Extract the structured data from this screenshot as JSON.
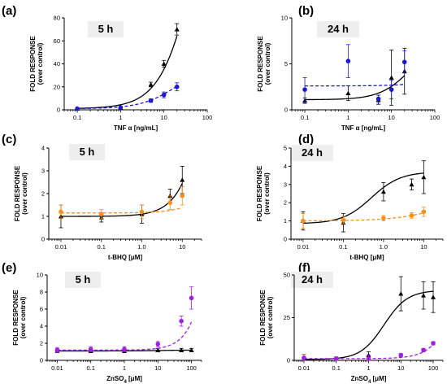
{
  "colors": {
    "black": "#000000",
    "blue": "#1a1acc",
    "orange": "#f5901e",
    "magenta": "#a020e0",
    "axis": "#000000",
    "label_box": "#eeeeee"
  },
  "y_label_line1": "FOLD RESPONSE",
  "y_label_line2": "(over control)",
  "chart_data": [
    {
      "panel": "(a)",
      "time": "5 h",
      "type": "scatter",
      "x_scale": "log",
      "xlim": [
        0.05,
        100
      ],
      "ylim": [
        0,
        80
      ],
      "x_ticks": [
        0.1,
        1,
        10,
        100
      ],
      "x_tick_labels": [
        "0.1",
        "1",
        "10",
        "100"
      ],
      "y_ticks": [
        0,
        20,
        40,
        60,
        80
      ],
      "y_tick_labels": [
        "0",
        "20",
        "40",
        "60",
        "80"
      ],
      "xlabel": "TNF α [ng/mL]",
      "series": [
        {
          "marker": "triangle",
          "color": "#000000",
          "line": "solid",
          "x": [
            0.1,
            1,
            5,
            10,
            20
          ],
          "y": [
            1,
            2,
            22,
            40,
            70
          ],
          "err": [
            0.5,
            0.8,
            2,
            3,
            5
          ],
          "curve": {
            "bottom": 1,
            "top": 300,
            "ec50": 70,
            "hill": 1.05
          }
        },
        {
          "marker": "circle",
          "color": "#1a1acc",
          "line": "dashed",
          "x": [
            0.1,
            1,
            5,
            10,
            20
          ],
          "y": [
            1,
            2,
            8,
            13,
            20
          ],
          "err": [
            0.5,
            0.5,
            1.5,
            2.5,
            3.5
          ],
          "curve": {
            "bottom": 1,
            "top": 40,
            "ec50": 20,
            "hill": 1.05
          }
        }
      ]
    },
    {
      "panel": "(b)",
      "time": "24 h",
      "type": "scatter",
      "x_scale": "log",
      "xlim": [
        0.05,
        100
      ],
      "ylim": [
        0,
        10
      ],
      "x_ticks": [
        0.1,
        1,
        10,
        100
      ],
      "x_tick_labels": [
        "0.1",
        "1",
        "10",
        "100"
      ],
      "y_ticks": [
        0,
        5,
        10
      ],
      "y_tick_labels": [
        "0",
        "5",
        "10"
      ],
      "xlabel": "TNF α [ng/mL]",
      "series": [
        {
          "marker": "triangle",
          "color": "#000000",
          "line": "solid",
          "x": [
            0.1,
            1,
            5,
            10,
            20
          ],
          "y": [
            1.0,
            1.8,
            1.1,
            3.5,
            4.2
          ],
          "err": [
            0.3,
            0.8,
            0.5,
            3.0,
            2.5
          ],
          "curve": {
            "bottom": 1.1,
            "top": 8,
            "ec50": 30,
            "hill": 1.2
          }
        },
        {
          "marker": "circle",
          "color": "#1a1acc",
          "line": "dashed",
          "x": [
            0.1,
            1,
            5,
            10,
            20
          ],
          "y": [
            2.2,
            5.3,
            1.2,
            2.2,
            5.2
          ],
          "err": [
            1.3,
            1.8,
            0.4,
            1.0,
            1.2
          ],
          "curve": {
            "bottom": 2.6,
            "top": 20,
            "ec50": 2000,
            "hill": 1
          }
        }
      ]
    },
    {
      "panel": "(c)",
      "time": "5 h",
      "type": "scatter",
      "x_scale": "log",
      "xlim": [
        0.005,
        30
      ],
      "ylim": [
        0,
        4
      ],
      "x_ticks": [
        0.01,
        0.1,
        1.0,
        10
      ],
      "x_tick_labels": [
        "0.01",
        "0.1",
        "1.0",
        "10"
      ],
      "y_ticks": [
        0,
        1,
        2,
        3,
        4
      ],
      "y_tick_labels": [
        "0",
        "1",
        "2",
        "3",
        "4"
      ],
      "xlabel": "t-BHQ [μM]",
      "series": [
        {
          "marker": "triangle",
          "color": "#000000",
          "line": "solid",
          "x": [
            0.01,
            0.1,
            1,
            5,
            10
          ],
          "y": [
            1.0,
            0.95,
            1.1,
            1.9,
            2.6
          ],
          "err": [
            0.5,
            0.2,
            0.4,
            0.3,
            0.6
          ],
          "curve": {
            "bottom": 1.0,
            "top": 20,
            "ec50": 80,
            "hill": 1.2
          }
        },
        {
          "marker": "circle",
          "color": "#f5901e",
          "line": "dashed",
          "x": [
            0.01,
            0.1,
            1,
            5,
            10
          ],
          "y": [
            1.2,
            1.1,
            1.2,
            1.6,
            1.9
          ],
          "err": [
            0.3,
            0.2,
            0.3,
            0.3,
            0.4
          ],
          "curve": {
            "bottom": 1.15,
            "top": 6,
            "ec50": 150,
            "hill": 1.1
          }
        }
      ]
    },
    {
      "panel": "(d)",
      "time": "24 h",
      "type": "scatter",
      "x_scale": "log",
      "xlim": [
        0.005,
        30
      ],
      "ylim": [
        0,
        5
      ],
      "x_ticks": [
        0.01,
        0.1,
        1.0,
        10
      ],
      "x_tick_labels": [
        "0.01",
        "0.1",
        "1.0",
        "10"
      ],
      "y_ticks": [
        0,
        1,
        2,
        3,
        4,
        5
      ],
      "y_tick_labels": [
        "0",
        "1",
        "2",
        "3",
        "4",
        "5"
      ],
      "xlabel": "t-BHQ [μM]",
      "series": [
        {
          "marker": "triangle",
          "color": "#000000",
          "line": "solid",
          "x": [
            0.01,
            0.1,
            1,
            5,
            10
          ],
          "y": [
            1.0,
            0.9,
            2.6,
            3.0,
            3.4
          ],
          "err": [
            0.5,
            0.5,
            0.5,
            0.3,
            0.9
          ],
          "curve": {
            "bottom": 0.85,
            "top": 3.7,
            "ec50": 0.5,
            "hill": 1.2
          }
        },
        {
          "marker": "circle",
          "color": "#f5901e",
          "line": "dashed",
          "x": [
            0.01,
            0.1,
            1,
            5,
            10
          ],
          "y": [
            1.0,
            1.05,
            1.15,
            1.3,
            1.5
          ],
          "err": [
            0.4,
            0.2,
            0.15,
            0.15,
            0.25
          ],
          "curve": {
            "bottom": 1.0,
            "top": 3,
            "ec50": 60,
            "hill": 0.7
          }
        }
      ]
    },
    {
      "panel": "(e)",
      "time": "5 h",
      "type": "scatter",
      "x_scale": "log",
      "xlim": [
        0.005,
        200
      ],
      "ylim": [
        0,
        10
      ],
      "x_ticks": [
        0.01,
        0.1,
        1,
        10,
        100
      ],
      "x_tick_labels": [
        "0.01",
        "0.1",
        "1",
        "10",
        "100"
      ],
      "y_ticks": [
        0,
        2,
        4,
        6,
        8,
        10
      ],
      "y_tick_labels": [
        "0",
        "2",
        "4",
        "6",
        "8",
        "10"
      ],
      "xlabel": "ZnSO4 [μM]",
      "xlabel_parts": [
        "ZnSO",
        "4",
        " [μM]"
      ],
      "series": [
        {
          "marker": "triangle",
          "color": "#000000",
          "line": "solid",
          "x": [
            0.01,
            0.1,
            1,
            10,
            50,
            100
          ],
          "y": [
            1.1,
            1.1,
            1.1,
            1.2,
            1.2,
            1.2
          ],
          "err": [
            0.2,
            0.2,
            0.2,
            0.2,
            0.2,
            0.2
          ],
          "curve": {
            "bottom": 1.1,
            "top": 1.2,
            "ec50": 10,
            "hill": 1
          }
        },
        {
          "marker": "circle",
          "color": "#a020e0",
          "line": "dashed",
          "x": [
            0.01,
            0.1,
            1,
            10,
            50,
            100
          ],
          "y": [
            1.2,
            1.3,
            1.3,
            1.9,
            4.6,
            7.3
          ],
          "err": [
            0.3,
            0.3,
            0.3,
            0.3,
            0.6,
            1.3
          ],
          "curve": {
            "bottom": 1.2,
            "top": 200,
            "ec50": 3000,
            "hill": 1.2
          }
        }
      ]
    },
    {
      "panel": "(f)",
      "time": "24 h",
      "type": "scatter",
      "x_scale": "log",
      "xlim": [
        0.005,
        200
      ],
      "ylim": [
        0,
        50
      ],
      "x_ticks": [
        0.01,
        0.1,
        1,
        10,
        100
      ],
      "x_tick_labels": [
        "0.01",
        "0.1",
        "1",
        "10",
        "100"
      ],
      "y_ticks": [
        0,
        25,
        50
      ],
      "y_tick_labels": [
        "0",
        "25",
        "50"
      ],
      "xlabel": "ZnSO4 [μM]",
      "xlabel_parts": [
        "ZnSO",
        "4",
        " [μM]"
      ],
      "series": [
        {
          "marker": "triangle",
          "color": "#000000",
          "line": "solid",
          "x": [
            0.01,
            0.1,
            1,
            10,
            50,
            100
          ],
          "y": [
            1,
            1,
            3,
            39,
            38,
            37
          ],
          "err": [
            1,
            1,
            2,
            10,
            8,
            9
          ],
          "curve": {
            "bottom": 0.5,
            "top": 41,
            "ec50": 3,
            "hill": 1.2
          }
        },
        {
          "marker": "circle",
          "color": "#a020e0",
          "line": "dashed",
          "x": [
            0.01,
            0.1,
            1,
            10,
            50,
            100
          ],
          "y": [
            1.5,
            1,
            1,
            3,
            6,
            10
          ],
          "err": [
            2,
            1,
            2,
            1,
            1,
            1
          ],
          "curve": {
            "bottom": 1.0,
            "top": 300,
            "ec50": 2500,
            "hill": 1.1
          }
        }
      ]
    }
  ]
}
